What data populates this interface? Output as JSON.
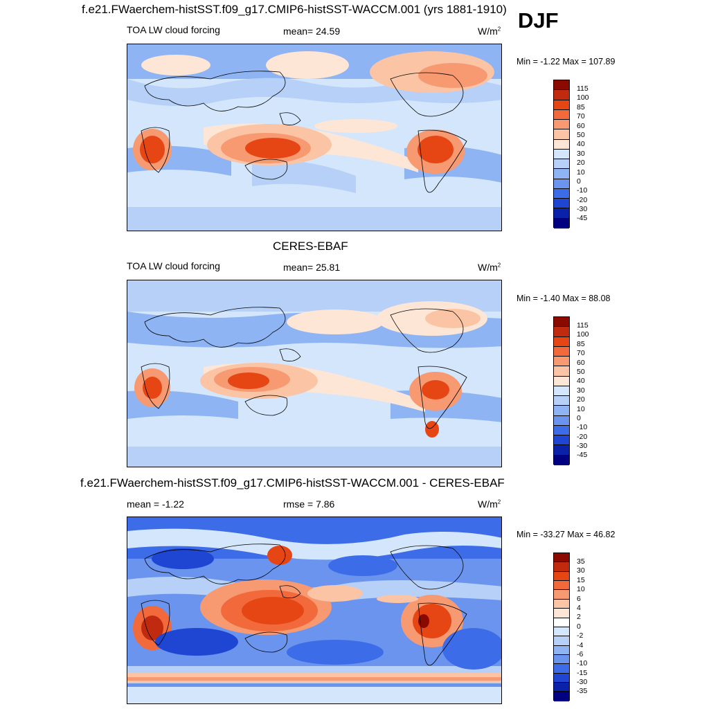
{
  "season": "DJF",
  "panels": [
    {
      "title": "f.e21.FWaerchem-histSST.f09_g17.CMIP6-histSST-WACCM.001 (yrs 1881-1910)",
      "variable": "TOA LW cloud forcing",
      "stat": "mean=  24.59",
      "units": "W/m",
      "units_exp": "2",
      "minmax": "Min =  -1.22 Max = 107.89",
      "levels": [
        "115",
        "100",
        "85",
        "70",
        "60",
        "50",
        "40",
        "30",
        "20",
        "10",
        "0",
        "-10",
        "-20",
        "-30",
        "-45"
      ],
      "colors": [
        "#8b0a00",
        "#c02a0e",
        "#e64614",
        "#f26a3c",
        "#f79a72",
        "#fbc4a4",
        "#fde6d6",
        "#d4e6fb",
        "#b6d0f7",
        "#8eb4f4",
        "#6a94ee",
        "#3d6ce8",
        "#1e46d2",
        "#0a22aa",
        "#000080"
      ]
    },
    {
      "title": "CERES-EBAF",
      "variable": "TOA LW cloud forcing",
      "stat": "mean=  25.81",
      "units": "W/m",
      "units_exp": "2",
      "minmax": "Min =  -1.40 Max =  88.08",
      "levels": [
        "115",
        "100",
        "85",
        "70",
        "60",
        "50",
        "40",
        "30",
        "20",
        "10",
        "0",
        "-10",
        "-20",
        "-30",
        "-45"
      ],
      "colors": [
        "#8b0a00",
        "#c02a0e",
        "#e64614",
        "#f26a3c",
        "#f79a72",
        "#fbc4a4",
        "#fde6d6",
        "#d4e6fb",
        "#b6d0f7",
        "#8eb4f4",
        "#6a94ee",
        "#3d6ce8",
        "#1e46d2",
        "#0a22aa",
        "#000080"
      ]
    },
    {
      "title": "f.e21.FWaerchem-histSST.f09_g17.CMIP6-histSST-WACCM.001 - CERES-EBAF",
      "stat_left": "mean =  -1.22",
      "stat": "rmse =   7.86",
      "units": "W/m",
      "units_exp": "2",
      "minmax": "Min = -33.27 Max =  46.82",
      "levels": [
        "35",
        "30",
        "15",
        "10",
        "6",
        "4",
        "2",
        "0",
        "-2",
        "-4",
        "-6",
        "-10",
        "-15",
        "-30",
        "-35"
      ],
      "colors": [
        "#8b0a00",
        "#c02a0e",
        "#e64614",
        "#f26a3c",
        "#f79a72",
        "#fbc4a4",
        "#fde6d6",
        "#ffffff",
        "#d4e6fb",
        "#b6d0f7",
        "#8eb4f4",
        "#6a94ee",
        "#3d6ce8",
        "#1e46d2",
        "#0a22aa",
        "#000080"
      ]
    }
  ]
}
